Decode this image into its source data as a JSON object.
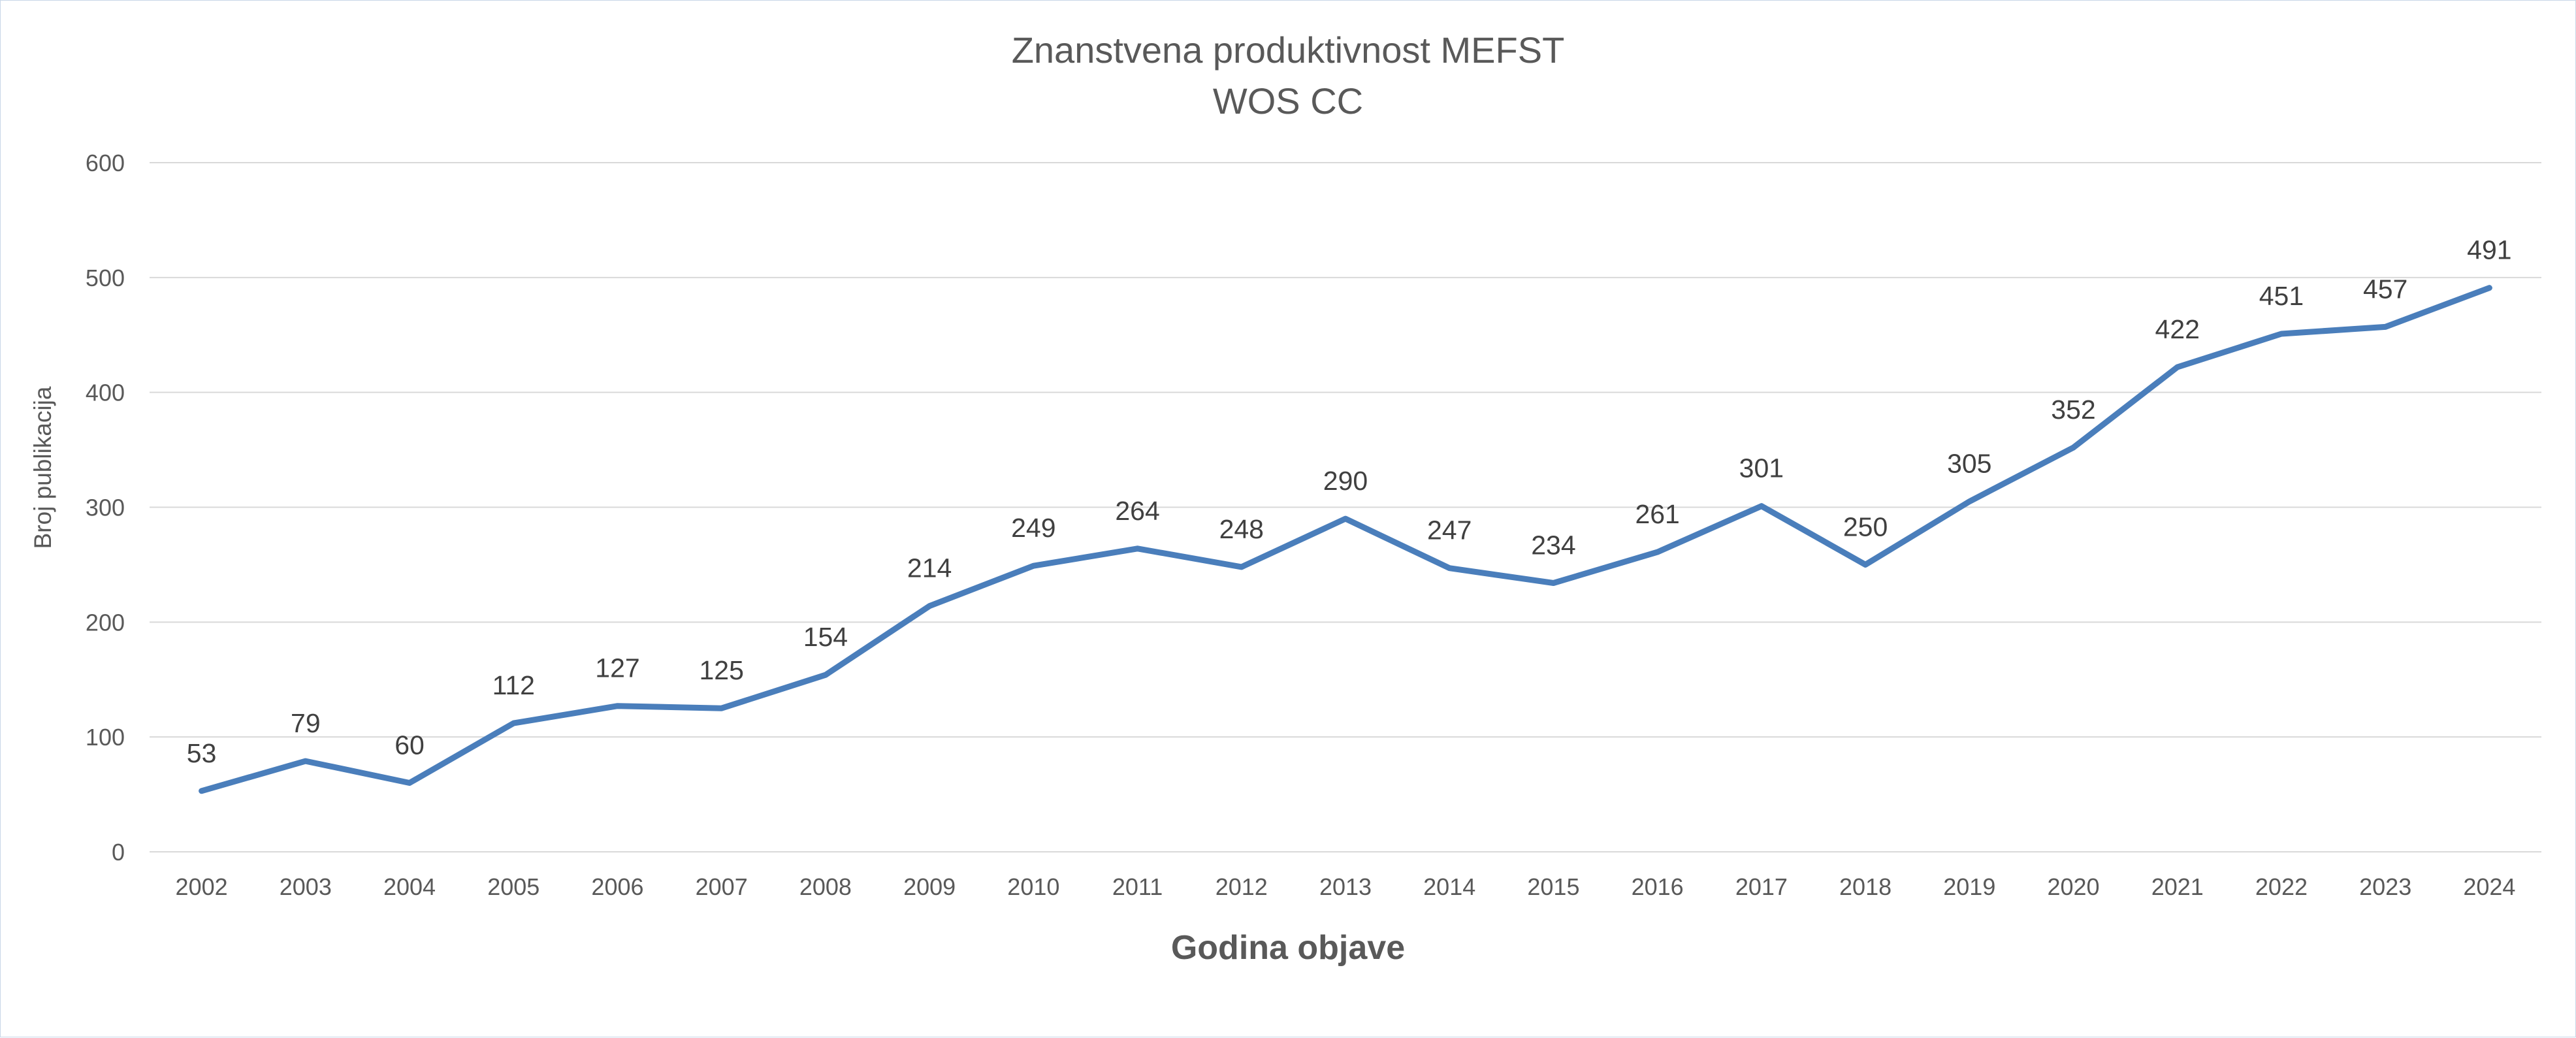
{
  "chart_data": {
    "type": "line",
    "title": "Znanstvena produktivnost MEFST",
    "subtitle": "WOS CC",
    "xlabel": "Godina objave",
    "ylabel": "Broj publikacija",
    "ylim": [
      0,
      600
    ],
    "yticks": [
      "0",
      "100",
      "200",
      "300",
      "400",
      "500",
      "600"
    ],
    "grid": true,
    "legend": "none",
    "categories": [
      "2002",
      "2003",
      "2004",
      "2005",
      "2006",
      "2007",
      "2008",
      "2009",
      "2010",
      "2011",
      "2012",
      "2013",
      "2014",
      "2015",
      "2016",
      "2017",
      "2018",
      "2019",
      "2020",
      "2021",
      "2022",
      "2023",
      "2024"
    ],
    "series": [
      {
        "color": "#4a7ebb",
        "values": [
          53,
          79,
          60,
          112,
          127,
          125,
          154,
          214,
          249,
          264,
          248,
          290,
          247,
          234,
          261,
          301,
          250,
          305,
          352,
          422,
          451,
          457,
          491
        ]
      }
    ]
  }
}
